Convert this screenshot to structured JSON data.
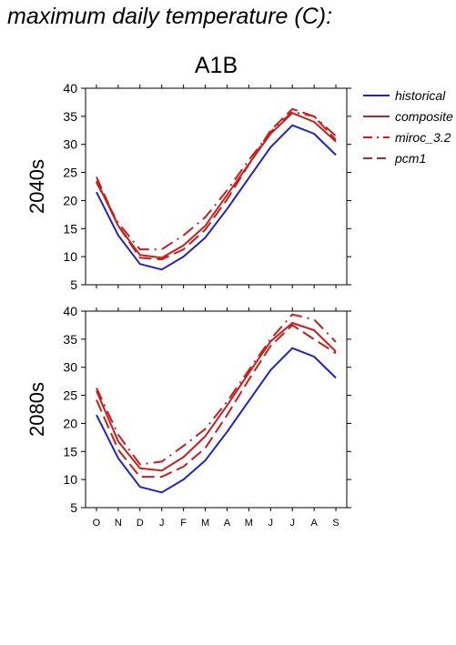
{
  "page": {
    "title": "maximum daily temperature (C):"
  },
  "colors": {
    "historical": "#1f22c4",
    "scenario": "#c4201f",
    "axis": "#000000"
  },
  "chart_data": {
    "type": "line",
    "title": "A1B",
    "categories": [
      "O",
      "N",
      "D",
      "J",
      "F",
      "M",
      "A",
      "M",
      "J",
      "J",
      "A",
      "S"
    ],
    "ylim": [
      5,
      40
    ],
    "yticks": [
      5,
      10,
      15,
      20,
      25,
      30,
      35,
      40
    ],
    "grid": false,
    "legend_position": "right",
    "legend": [
      {
        "name": "historical",
        "dash": "solid",
        "color": "historical"
      },
      {
        "name": "composite",
        "dash": "solid",
        "color": "scenario"
      },
      {
        "name": "miroc_3.2",
        "dash": "dashdot",
        "color": "scenario"
      },
      {
        "name": "pcm1",
        "dash": "dashed",
        "color": "scenario"
      }
    ],
    "panels": [
      {
        "ylabel": "2040s",
        "series": [
          {
            "name": "historical",
            "values": [
              21.5,
              13.8,
              8.7,
              7.7,
              10.0,
              13.4,
              18.5,
              24.0,
              29.5,
              33.4,
              31.9,
              28.1
            ]
          },
          {
            "name": "composite",
            "values": [
              23.5,
              15.5,
              10.3,
              9.8,
              12.0,
              15.5,
              21.0,
              26.5,
              31.9,
              35.6,
              34.0,
              30.5
            ]
          },
          {
            "name": "miroc_3.2",
            "values": [
              23.2,
              16.0,
              11.3,
              11.3,
              13.8,
              17.0,
              21.8,
              27.2,
              32.2,
              35.8,
              35.0,
              31.5
            ]
          },
          {
            "name": "pcm1",
            "values": [
              24.2,
              15.5,
              9.8,
              9.5,
              11.3,
              14.8,
              20.2,
              26.4,
              32.5,
              36.3,
              35.0,
              30.8
            ]
          }
        ]
      },
      {
        "ylabel": "2080s",
        "series": [
          {
            "name": "historical",
            "values": [
              21.5,
              13.8,
              8.7,
              7.7,
              10.0,
              13.4,
              18.5,
              24.0,
              29.5,
              33.4,
              31.9,
              28.1
            ]
          },
          {
            "name": "composite",
            "values": [
              25.8,
              16.8,
              12.0,
              11.6,
              14.0,
              17.7,
              23.2,
              29.0,
              34.6,
              37.9,
              36.6,
              32.8
            ]
          },
          {
            "name": "miroc_3.2",
            "values": [
              26.3,
              18.0,
              12.7,
              13.2,
              16.0,
              19.0,
              23.9,
              29.5,
              35.0,
              39.4,
              38.5,
              34.5
            ]
          },
          {
            "name": "pcm1",
            "values": [
              24.2,
              15.3,
              10.5,
              10.5,
              12.3,
              15.6,
              21.5,
              27.8,
              33.8,
              37.5,
              35.0,
              32.5
            ]
          }
        ]
      }
    ]
  }
}
